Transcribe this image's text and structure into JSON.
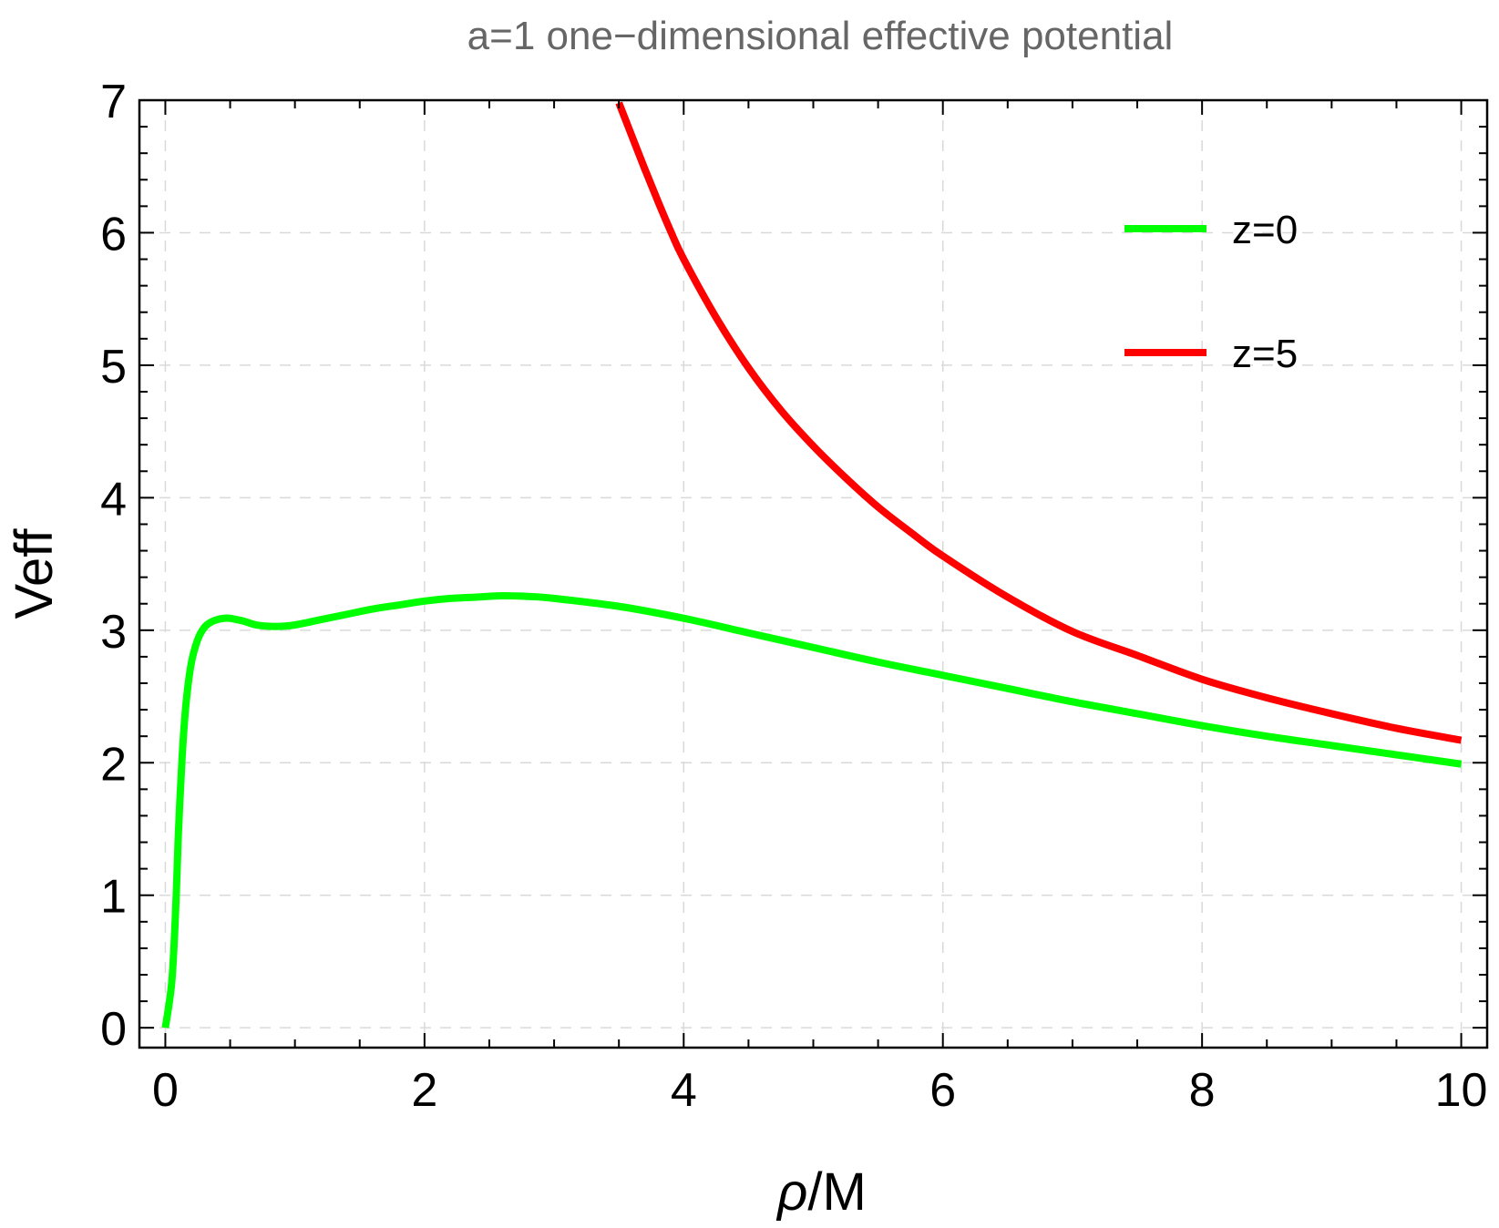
{
  "chart_data": {
    "type": "line",
    "title": "a=1 one−dimensional effective potential",
    "xlabel_symbol": "ρ",
    "xlabel_unit": "/M",
    "ylabel": "Veff",
    "xlim": [
      -0.2,
      10.2
    ],
    "ylim": [
      -0.15,
      7
    ],
    "xticks": [
      0,
      2,
      4,
      6,
      8,
      10
    ],
    "xtick_labels": [
      "0",
      "2",
      "4",
      "6",
      "8",
      "10"
    ],
    "yticks": [
      0,
      1,
      2,
      3,
      4,
      5,
      6,
      7
    ],
    "ytick_labels": [
      "0",
      "1",
      "2",
      "3",
      "4",
      "5",
      "6",
      "7"
    ],
    "grid": true,
    "legend_position": "top-right",
    "series": [
      {
        "name": "z=0",
        "color": "#00ff00",
        "x": [
          0,
          0.05,
          0.08,
          0.1,
          0.13,
          0.16,
          0.2,
          0.25,
          0.3,
          0.35,
          0.4,
          0.45,
          0.5,
          0.55,
          0.6,
          0.7,
          0.8,
          0.9,
          1.0,
          1.2,
          1.4,
          1.6,
          1.8,
          2.0,
          2.2,
          2.4,
          2.6,
          2.8,
          3.0,
          3.5,
          4.0,
          4.5,
          5.0,
          5.5,
          6.0,
          6.5,
          7.0,
          7.5,
          8.0,
          8.5,
          9.0,
          9.5,
          10.0
        ],
        "y": [
          0,
          0.35,
          0.9,
          1.45,
          2.05,
          2.45,
          2.75,
          2.93,
          3.02,
          3.06,
          3.08,
          3.09,
          3.09,
          3.08,
          3.07,
          3.04,
          3.03,
          3.03,
          3.04,
          3.08,
          3.12,
          3.16,
          3.19,
          3.22,
          3.24,
          3.25,
          3.26,
          3.255,
          3.24,
          3.18,
          3.09,
          2.98,
          2.87,
          2.76,
          2.66,
          2.56,
          2.46,
          2.37,
          2.28,
          2.2,
          2.13,
          2.06,
          1.99
        ]
      },
      {
        "name": "z=5",
        "color": "#ff0000",
        "x": [
          3.5,
          3.6,
          3.7,
          3.8,
          3.9,
          4.0,
          4.25,
          4.5,
          4.75,
          5.0,
          5.25,
          5.5,
          5.75,
          6.0,
          6.5,
          7.0,
          7.5,
          8.0,
          8.5,
          9.0,
          9.5,
          10.0
        ],
        "y": [
          6.98,
          6.73,
          6.48,
          6.24,
          6.01,
          5.8,
          5.36,
          4.98,
          4.66,
          4.39,
          4.15,
          3.93,
          3.74,
          3.56,
          3.25,
          2.99,
          2.81,
          2.63,
          2.49,
          2.37,
          2.26,
          2.17
        ]
      }
    ]
  }
}
